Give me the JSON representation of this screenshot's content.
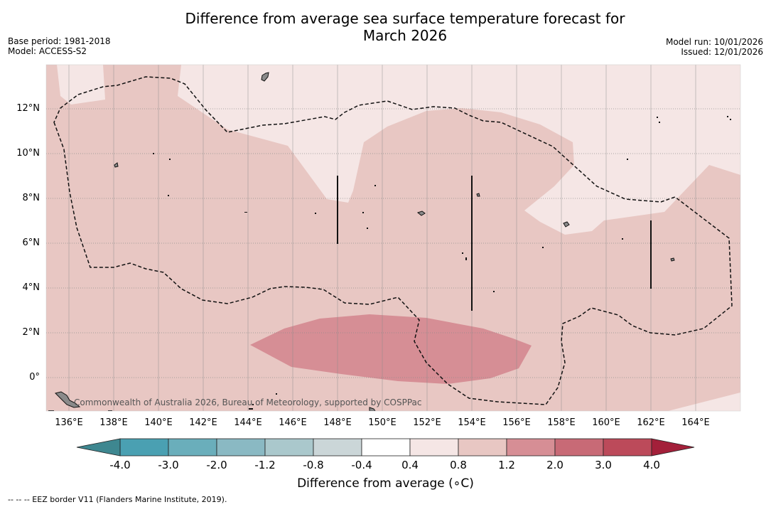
{
  "title_line1": "Difference from average sea surface temperature forecast for",
  "title_line2": "March 2026",
  "base_period": "Base period: 1981-2018",
  "model": "Model: ACCESS-S2",
  "model_run": "Model run: 10/01/2026",
  "issued": "Issued: 12/01/2026",
  "credit": "Commonwealth of Australia 2026, Bureau of Meteorology, supported by COSPPac",
  "lat_labels": [
    "12°N",
    "10°N",
    "8°N",
    "6°N",
    "4°N",
    "2°N",
    "0°"
  ],
  "lon_labels": [
    "136°E",
    "138°E",
    "140°E",
    "142°E",
    "144°E",
    "146°E",
    "148°E",
    "150°E",
    "152°E",
    "154°E",
    "156°E",
    "158°E",
    "160°E",
    "162°E",
    "164°E"
  ],
  "colorbar": {
    "label": "Difference from average (∘C)",
    "ticks": [
      "-4.0",
      "-3.0",
      "-2.0",
      "-1.2",
      "-0.8",
      "-0.4",
      "0.4",
      "0.8",
      "1.2",
      "2.0",
      "3.0",
      "4.0"
    ],
    "colors": [
      "#4aa0b2",
      "#6aaebb",
      "#8ab9c3",
      "#aac8cc",
      "#cbd6d8",
      "#ffffff",
      "#f5e6e5",
      "#e8c7c3",
      "#d68e95",
      "#c86a76",
      "#bc4a5a"
    ],
    "under_color": "#3e8790",
    "over_color": "#a3203a"
  },
  "footnote": "--  --  -- EEZ border V11 (Flanders Marine Institute, 2019).",
  "colors": {
    "anomaly_0_4_to_0_8": "#f5e6e5",
    "anomaly_0_8_to_1_2": "#e8c7c3",
    "anomaly_1_2_to_2_0": "#d68e95"
  }
}
